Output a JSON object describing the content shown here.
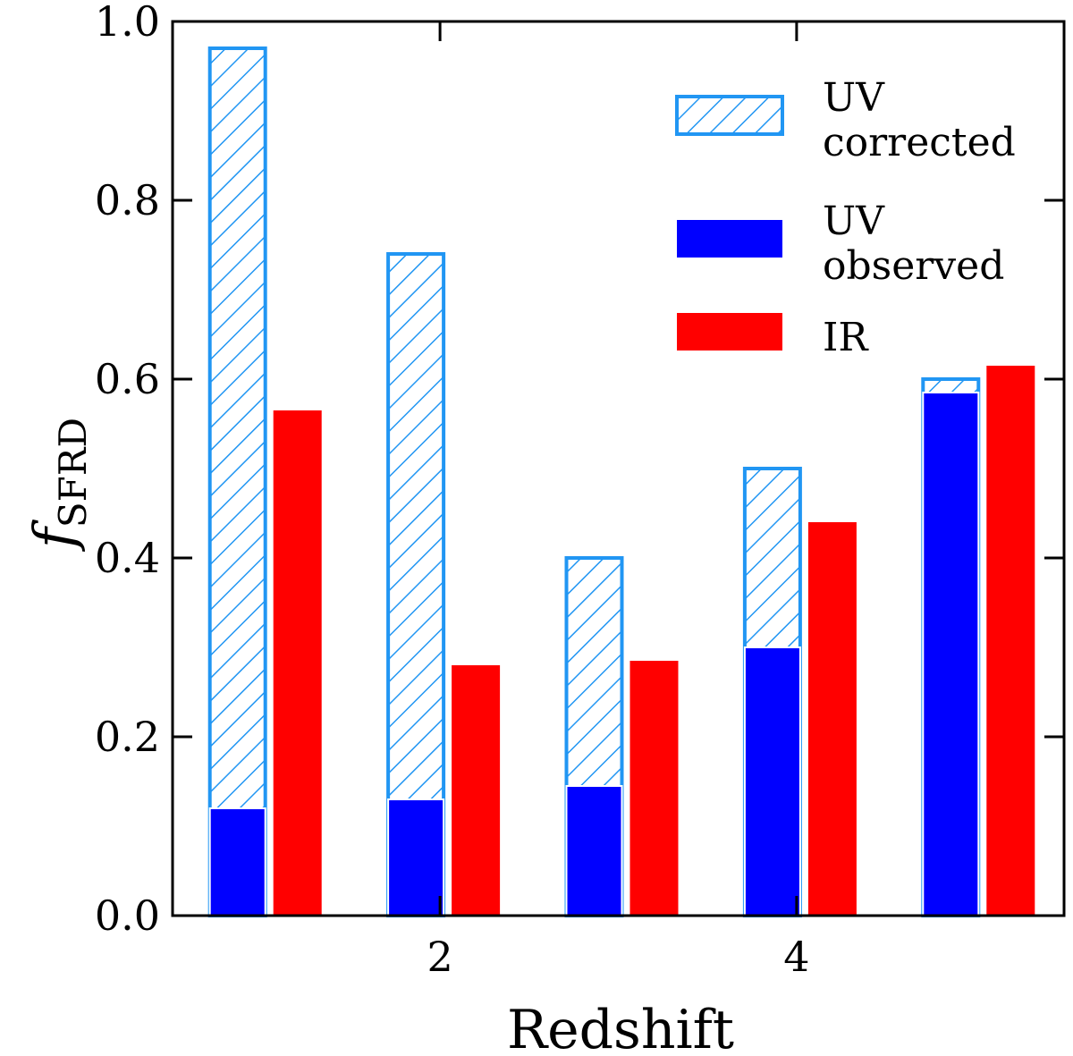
{
  "chart_data": {
    "type": "bar",
    "title": "",
    "xlabel": "Redshift",
    "ylabel_symbol": "f",
    "ylabel_subscript": "SFRD",
    "xlim": [
      0.5,
      5.5
    ],
    "ylim": [
      0.0,
      1.0
    ],
    "xticks": [
      2,
      4
    ],
    "xtick_labels": [
      "2",
      "4"
    ],
    "yticks": [
      0.0,
      0.2,
      0.4,
      0.6,
      0.8,
      1.0
    ],
    "ytick_labels": [
      "0.0",
      "0.2",
      "0.4",
      "0.6",
      "0.8",
      "1.0"
    ],
    "x": [
      1,
      2,
      3,
      4,
      5
    ],
    "series": [
      {
        "name": "UV corrected",
        "style": "hatched",
        "color": "#2196f3",
        "values": [
          0.97,
          0.74,
          0.4,
          0.5,
          0.6
        ]
      },
      {
        "name": "UV observed",
        "style": "solid",
        "color": "#0000ff",
        "values": [
          0.12,
          0.13,
          0.145,
          0.3,
          0.585
        ]
      },
      {
        "name": "IR",
        "style": "solid",
        "color": "#ff0000",
        "values": [
          0.565,
          0.28,
          0.285,
          0.44,
          0.615
        ]
      }
    ],
    "legend": {
      "placement": "top-right",
      "entries": [
        {
          "series": "UV corrected",
          "line1": "UV",
          "line2": "corrected"
        },
        {
          "series": "UV observed",
          "line1": "UV",
          "line2": "observed"
        },
        {
          "series": "IR",
          "line1": "IR",
          "line2": ""
        }
      ]
    }
  }
}
